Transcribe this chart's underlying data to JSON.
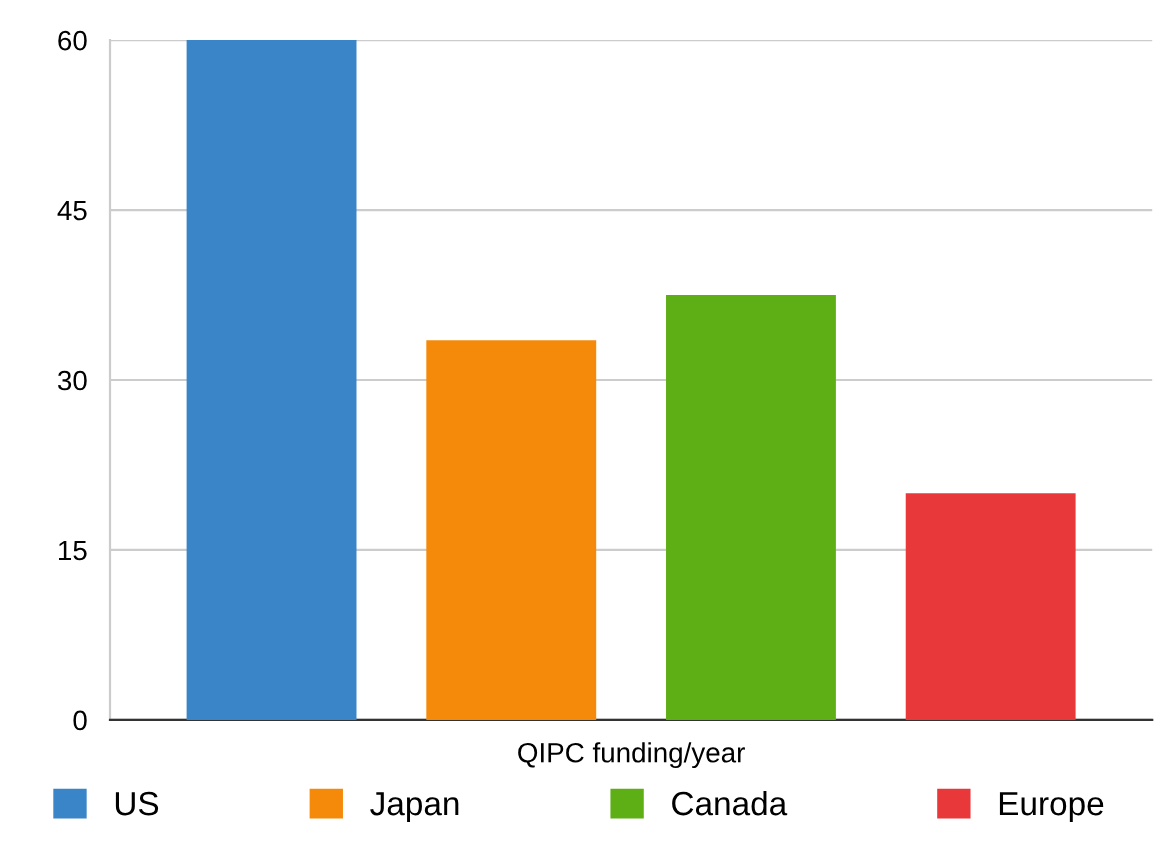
{
  "chart_data": {
    "type": "bar",
    "categories": [
      "QIPC funding/year"
    ],
    "series": [
      {
        "name": "US",
        "color": "#3a84c8",
        "values": [
          60
        ]
      },
      {
        "name": "Japan",
        "color": "#f58a0a",
        "values": [
          33.5
        ]
      },
      {
        "name": "Canada",
        "color": "#5eae16",
        "values": [
          37.5
        ]
      },
      {
        "name": "Europe",
        "color": "#e8383a",
        "values": [
          20
        ]
      }
    ],
    "ylim": [
      0,
      60
    ],
    "yticks": [
      0,
      15,
      30,
      45,
      60
    ],
    "grid": "y",
    "legend": "bottom"
  }
}
